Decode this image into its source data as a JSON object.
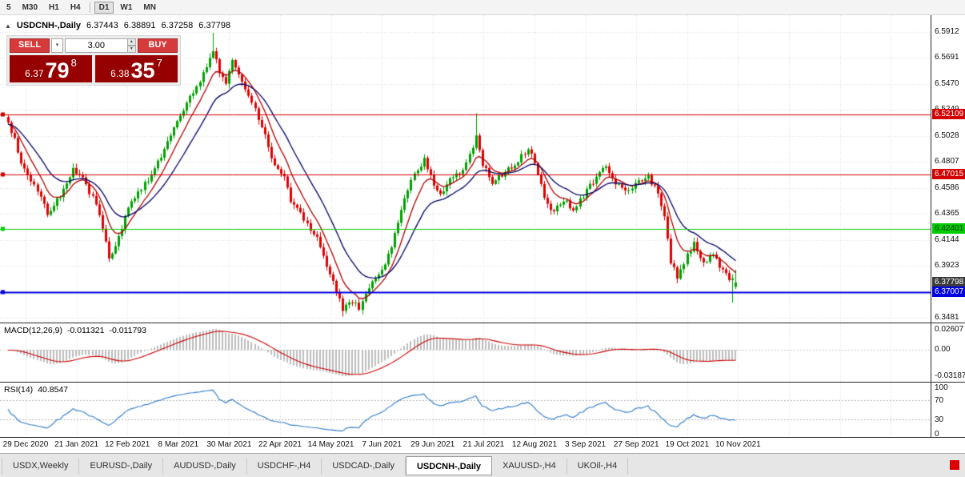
{
  "toolbar": {
    "timeframes": [
      {
        "label": "5",
        "active": false,
        "separator_before": false
      },
      {
        "label": "M30",
        "active": false,
        "separator_before": false
      },
      {
        "label": "H1",
        "active": false,
        "separator_before": false
      },
      {
        "label": "H4",
        "active": false,
        "separator_before": false
      },
      {
        "label": "D1",
        "active": true,
        "separator_before": true
      },
      {
        "label": "W1",
        "active": false,
        "separator_before": false
      },
      {
        "label": "MN",
        "active": false,
        "separator_before": false
      }
    ]
  },
  "icons": {
    "collapse_arrow": "▲",
    "dropdown_arrow": "▾",
    "spinner_up": "▲",
    "spinner_down": "▼"
  },
  "header": {
    "symbol_title": "USDCNH-,Daily",
    "open": "6.37443",
    "high": "6.38891",
    "low": "6.37258",
    "close": "6.37798"
  },
  "trade_panel": {
    "sell_label": "SELL",
    "buy_label": "BUY",
    "volume": "3.00",
    "sell_price_head": "6.37",
    "sell_price_big": "79",
    "sell_price_sup": "8",
    "buy_price_head": "6.38",
    "buy_price_big": "35",
    "buy_price_sup": "7"
  },
  "price_axis_ticks": [
    "6.5912",
    "6.5691",
    "6.5470",
    "6.5249",
    "6.5028",
    "6.4807",
    "6.4586",
    "6.4365",
    "6.4144",
    "6.3923",
    "6.3702",
    "6.3481"
  ],
  "axis_labels": {
    "level_labels": [
      {
        "text": "6.52109",
        "price": 6.52109,
        "bg": "#d20000",
        "fg": "#ffffff"
      },
      {
        "text": "6.47015",
        "price": 6.47015,
        "bg": "#d20000",
        "fg": "#ffffff"
      },
      {
        "text": "6.42401",
        "price": 6.42401,
        "bg": "#00cc00",
        "fg": "#003300"
      },
      {
        "text": "6.37798",
        "price": 6.37798,
        "bg": "#3c3c3c",
        "fg": "#ffffff"
      },
      {
        "text": "6.37007",
        "price": 6.37007,
        "bg": "#0000e0",
        "fg": "#ffffff"
      }
    ]
  },
  "macd_panel": {
    "label": "MACD(12,26,9)",
    "value_main": "-0.011321",
    "value_signal": "-0.011793",
    "axis_top": "0.02607",
    "axis_mid": "0.00",
    "axis_bottom": "-0.03187"
  },
  "rsi_panel": {
    "label": "RSI(14)",
    "value": "40.8547",
    "axis": [
      "100",
      "70",
      "30",
      "0"
    ]
  },
  "date_axis": [
    "29 Dec 2020",
    "21 Jan 2021",
    "12 Feb 2021",
    "8 Mar 2021",
    "30 Mar 2021",
    "22 Apr 2021",
    "14 May 2021",
    "7 Jun 2021",
    "29 Jun 2021",
    "21 Jul 2021",
    "12 Aug 2021",
    "3 Sep 2021",
    "27 Sep 2021",
    "19 Oct 2021",
    "10 Nov 2021"
  ],
  "tabs": [
    {
      "label": "USDX,Weekly",
      "active": false
    },
    {
      "label": "EURUSD-,Daily",
      "active": false
    },
    {
      "label": "AUDUSD-,Daily",
      "active": false
    },
    {
      "label": "USDCHF-,H4",
      "active": false
    },
    {
      "label": "USDCAD-,Daily",
      "active": false
    },
    {
      "label": "USDCNH-,Daily",
      "active": true
    },
    {
      "label": "XAUUSD-,H4",
      "active": false
    },
    {
      "label": "UKOil-,H4",
      "active": false
    }
  ],
  "colors": {
    "up": "#00a000",
    "down": "#e00000",
    "ma_fast": "#b30000",
    "ma_slow": "#000066",
    "macd_hist": "#bdbdbd",
    "macd_signal": "#cc0000",
    "rsi_line": "#2878c8",
    "grid": "#dcdcdc",
    "level_red": "#d20000",
    "level_green": "#00cc00",
    "level_blue": "#0000e0"
  },
  "chart_data": {
    "type": "candlestick",
    "symbol": "USDCNH-",
    "timeframe": "Daily",
    "title": "USDCNH-,Daily",
    "bid": 6.37798,
    "ask": 6.38357,
    "current_bar": {
      "open": 6.37443,
      "high": 6.38891,
      "low": 6.37258,
      "close": 6.37798
    },
    "y_range": [
      6.3481,
      6.5912
    ],
    "x_axis_dates": [
      "29 Dec 2020",
      "21 Jan 2021",
      "12 Feb 2021",
      "8 Mar 2021",
      "30 Mar 2021",
      "22 Apr 2021",
      "14 May 2021",
      "7 Jun 2021",
      "29 Jun 2021",
      "21 Jul 2021",
      "12 Aug 2021",
      "3 Sep 2021",
      "27 Sep 2021",
      "19 Oct 2021",
      "10 Nov 2021"
    ],
    "levels": [
      {
        "price": 6.52109,
        "color": "#d20000",
        "width": 1,
        "type": "resistance"
      },
      {
        "price": 6.47015,
        "color": "#d20000",
        "width": 1,
        "type": "resistance"
      },
      {
        "price": 6.42401,
        "color": "#00cc00",
        "width": 1,
        "type": "support"
      },
      {
        "price": 6.37007,
        "color": "#0000e0",
        "width": 2,
        "type": "support"
      }
    ],
    "moving_averages": [
      {
        "period": 8,
        "color": "#b30000"
      },
      {
        "period": 18,
        "color": "#000066"
      }
    ],
    "macd": {
      "fast": 12,
      "slow": 26,
      "signal": 9,
      "last_main": -0.011321,
      "last_signal": -0.011793,
      "axis_max": 0.02607,
      "axis_min": -0.03187
    },
    "rsi": {
      "period": 14,
      "last_value": 40.8547,
      "bands": [
        70,
        30
      ]
    },
    "candles": {
      "count": 225,
      "close_waypoints": [
        [
          0,
          6.515
        ],
        [
          2,
          6.5
        ],
        [
          4,
          6.478
        ],
        [
          6,
          6.468
        ],
        [
          9,
          6.455
        ],
        [
          12,
          6.437
        ],
        [
          16,
          6.452
        ],
        [
          20,
          6.474
        ],
        [
          23,
          6.466
        ],
        [
          27,
          6.445
        ],
        [
          31,
          6.4
        ],
        [
          33,
          6.408
        ],
        [
          37,
          6.442
        ],
        [
          41,
          6.458
        ],
        [
          44,
          6.47
        ],
        [
          48,
          6.49
        ],
        [
          52,
          6.516
        ],
        [
          57,
          6.54
        ],
        [
          60,
          6.556
        ],
        [
          63,
          6.576
        ],
        [
          65,
          6.556
        ],
        [
          67,
          6.546
        ],
        [
          69,
          6.566
        ],
        [
          71,
          6.556
        ],
        [
          75,
          6.532
        ],
        [
          79,
          6.502
        ],
        [
          82,
          6.478
        ],
        [
          85,
          6.468
        ],
        [
          87,
          6.448
        ],
        [
          91,
          6.432
        ],
        [
          95,
          6.416
        ],
        [
          98,
          6.392
        ],
        [
          101,
          6.37
        ],
        [
          103,
          6.356
        ],
        [
          106,
          6.362
        ],
        [
          108,
          6.357
        ],
        [
          112,
          6.378
        ],
        [
          115,
          6.388
        ],
        [
          118,
          6.41
        ],
        [
          122,
          6.45
        ],
        [
          124,
          6.466
        ],
        [
          128,
          6.482
        ],
        [
          130,
          6.468
        ],
        [
          133,
          6.452
        ],
        [
          136,
          6.466
        ],
        [
          140,
          6.472
        ],
        [
          143,
          6.492
        ],
        [
          144,
          6.505
        ],
        [
          146,
          6.478
        ],
        [
          149,
          6.464
        ],
        [
          152,
          6.47
        ],
        [
          156,
          6.479
        ],
        [
          160,
          6.492
        ],
        [
          162,
          6.479
        ],
        [
          165,
          6.452
        ],
        [
          167,
          6.438
        ],
        [
          171,
          6.448
        ],
        [
          174,
          6.441
        ],
        [
          177,
          6.452
        ],
        [
          181,
          6.468
        ],
        [
          184,
          6.478
        ],
        [
          187,
          6.462
        ],
        [
          190,
          6.455
        ],
        [
          193,
          6.462
        ],
        [
          197,
          6.468
        ],
        [
          200,
          6.455
        ],
        [
          202,
          6.435
        ],
        [
          204,
          6.396
        ],
        [
          206,
          6.382
        ],
        [
          209,
          6.401
        ],
        [
          211,
          6.411
        ],
        [
          214,
          6.394
        ],
        [
          217,
          6.402
        ],
        [
          220,
          6.388
        ],
        [
          222,
          6.382
        ],
        [
          224,
          6.37798
        ]
      ],
      "wick_overrides": [
        [
          63,
          6.5905,
          null
        ],
        [
          103,
          null,
          6.349
        ],
        [
          144,
          6.522,
          null
        ],
        [
          223,
          null,
          6.361
        ]
      ]
    }
  }
}
